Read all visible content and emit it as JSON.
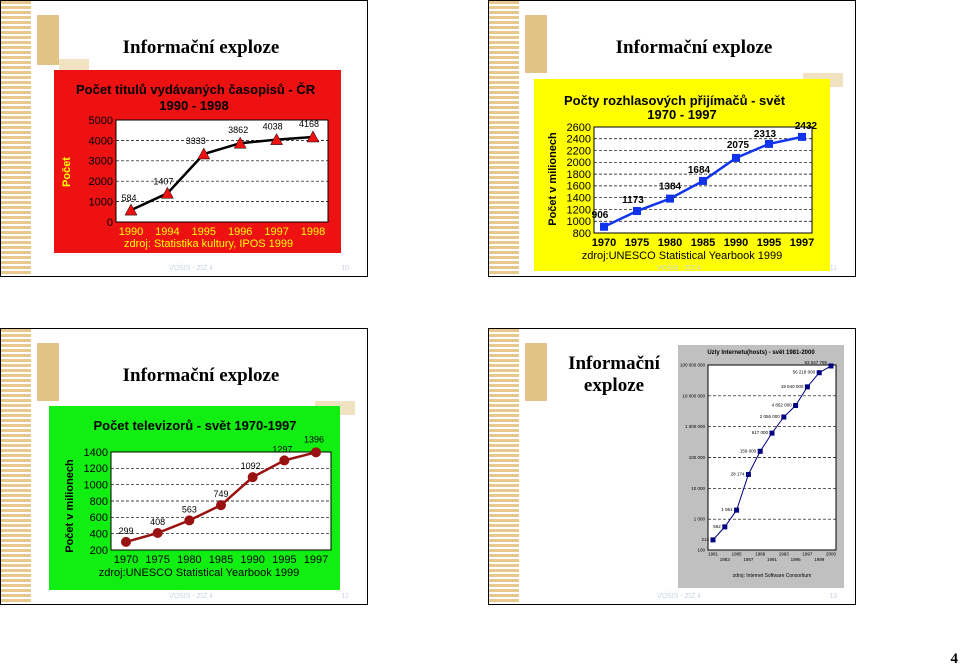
{
  "page_number": "4",
  "slides": [
    {
      "title": "Informační exploze",
      "footer_left": "VOŠIS - ZIZ 4",
      "footer_right": "10"
    },
    {
      "title": "Informační exploze",
      "footer_left": "VOŠIS - ZIZ 4",
      "footer_right": "11"
    },
    {
      "title": "Informační exploze",
      "footer_left": "VOŠIS - ZIZ 4",
      "footer_right": "12"
    },
    {
      "title_line1": "Informační",
      "title_line2": "exploze",
      "footer_left": "VOŠIS - ZIZ 4",
      "footer_right": "13"
    }
  ],
  "chart_data": [
    {
      "type": "line",
      "title": "Počet titulů vydávaných časopisů - ČR",
      "subtitle": "1990 - 1998",
      "ylabel": "Počet",
      "x": [
        "1990",
        "1994",
        "1995",
        "1996",
        "1997",
        "1998"
      ],
      "values": [
        584,
        1407,
        3333,
        3862,
        4038,
        4168
      ],
      "data_labels": [
        "584",
        "1407",
        "3333",
        "3862",
        "4038",
        "4168"
      ],
      "yticks": [
        "5000",
        "4000",
        "3000",
        "2000",
        "1000",
        "0"
      ],
      "ylim": [
        0,
        5000
      ],
      "source": "zdroj: Statistika kultury, IPOS 1999",
      "background": "#ee1111",
      "plot_bg": "#ffffff",
      "line_color": "#000000",
      "marker_color": "#ee1111"
    },
    {
      "type": "line",
      "title": "Počty rozhlasových přijímačů - svět",
      "subtitle": "1970 - 1997",
      "ylabel": "Počet v milionech",
      "x": [
        "1970",
        "1975",
        "1980",
        "1985",
        "1990",
        "1995",
        "1997"
      ],
      "values": [
        906,
        1173,
        1384,
        1684,
        2075,
        2313,
        2432
      ],
      "data_labels": [
        "906",
        "1173",
        "1384",
        "1684",
        "2075",
        "2313",
        "2432"
      ],
      "yticks": [
        "2600",
        "2400",
        "2200",
        "2000",
        "1800",
        "1600",
        "1400",
        "1200",
        "1000",
        "800"
      ],
      "ylim": [
        800,
        2600
      ],
      "source": "zdroj:UNESCO Statistical Yearbook 1999",
      "background": "#ffff00",
      "plot_bg": "#ffffff",
      "line_color": "#1133ee",
      "marker_color": "#1133ee"
    },
    {
      "type": "line",
      "title": "Počet televizorů - svět 1970-1997",
      "ylabel": "Počet v milionech",
      "x": [
        "1970",
        "1975",
        "1980",
        "1985",
        "1990",
        "1995",
        "1997"
      ],
      "values": [
        299,
        408,
        563,
        749,
        1092,
        1297,
        1396
      ],
      "data_labels": [
        "299",
        "408",
        "563",
        "749",
        "1092",
        "1297",
        "1396"
      ],
      "yticks": [
        "1400",
        "1200",
        "1000",
        "800",
        "600",
        "400",
        "200"
      ],
      "ylim": [
        200,
        1400
      ],
      "source": "zdroj:UNESCO Statistical Yearbook 1999",
      "background": "#11ee11",
      "plot_bg": "#ffffff",
      "line_color": "#991111",
      "marker_color": "#991111"
    },
    {
      "type": "line",
      "title": "Uzly Internetu(hosts) - svět 1981-2000",
      "x": [
        "1981",
        "1983",
        "1985",
        "1987",
        "1989",
        "1991",
        "1993",
        "1995",
        "1997",
        "1999",
        "2000"
      ],
      "x_top": [
        "1981",
        "1985",
        "1989",
        "1993",
        "1997",
        "2000"
      ],
      "x_bottom": [
        "1983",
        "1987",
        "1991",
        "1995",
        "1999"
      ],
      "values": [
        213,
        562,
        1961,
        28174,
        159000,
        617000,
        2056000,
        4852000,
        19540000,
        56218000,
        93047785
      ],
      "data_labels": [
        "213",
        "562",
        "1 961",
        "28 174",
        "159 000",
        "617 000",
        "2 056 000",
        "4 852 000",
        "19 540 000",
        "56 218 000",
        "93 047 785"
      ],
      "yticks": [
        "100 000 000",
        "10 000 000",
        "1 000 000",
        "100 000",
        "10 000",
        "1 000",
        "100"
      ],
      "scale": "log",
      "ylim": [
        100,
        100000000
      ],
      "source": "zdroj: Internet Software Consortium",
      "background": "#c0c0c0",
      "plot_bg": "#ffffff",
      "line_color": "#000080",
      "marker_color": "#000080"
    }
  ]
}
